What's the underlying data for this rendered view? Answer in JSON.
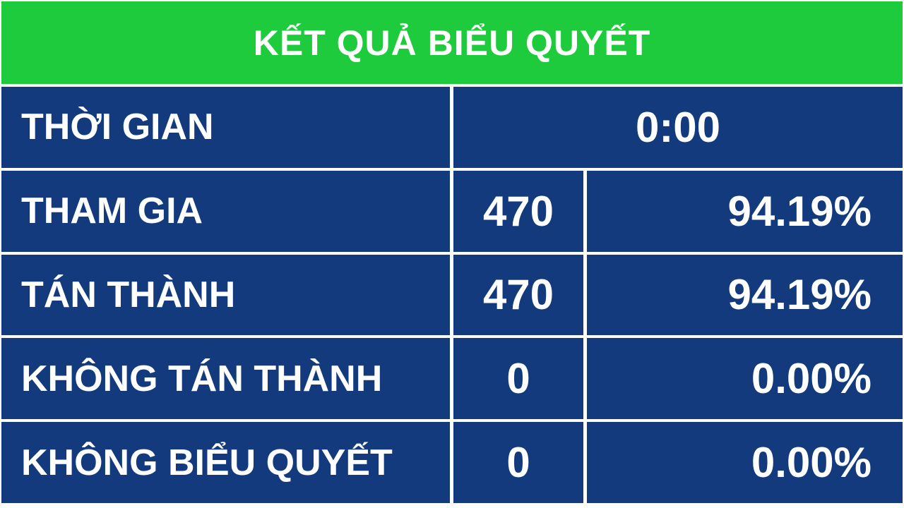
{
  "title": "KẾT QUẢ BIỂU QUYẾT",
  "colors": {
    "header_bg": "#1ecb3c",
    "cell_bg": "#133a7d",
    "gap_bg": "#ffffff",
    "text": "#ffffff"
  },
  "time": {
    "label": "THỜI GIAN",
    "value": "0:00"
  },
  "rows": [
    {
      "label": "THAM GIA",
      "count": "470",
      "percent": "94.19%"
    },
    {
      "label": "TÁN THÀNH",
      "count": "470",
      "percent": "94.19%"
    },
    {
      "label": "KHÔNG TÁN THÀNH",
      "count": "0",
      "percent": "0.00%"
    },
    {
      "label": "KHÔNG BIỂU QUYẾT",
      "count": "0",
      "percent": "0.00%"
    }
  ]
}
